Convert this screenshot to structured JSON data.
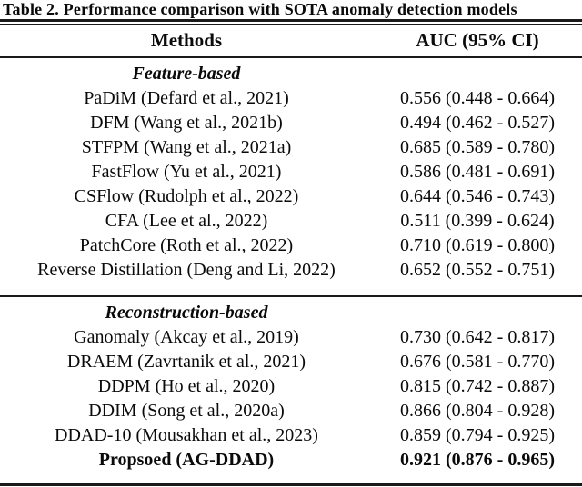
{
  "table": {
    "caption": "Table 2. Performance comparison with SOTA anomaly detection models",
    "columns": [
      "Methods",
      "AUC (95% CI)"
    ],
    "text_color": "#0a0a0a",
    "rule_color": "#1a1a1a",
    "background_color": "#ffffff",
    "sections": [
      {
        "title": "Feature-based",
        "rows": [
          {
            "method": "PaDiM (Defard et al., 2021)",
            "auc": "0.556 (0.448 - 0.664)",
            "bold": false
          },
          {
            "method": "DFM (Wang et al., 2021b)",
            "auc": "0.494 (0.462 - 0.527)",
            "bold": false
          },
          {
            "method": "STFPM (Wang et al., 2021a)",
            "auc": "0.685 (0.589 - 0.780)",
            "bold": false
          },
          {
            "method": "FastFlow (Yu et al., 2021)",
            "auc": "0.586 (0.481 - 0.691)",
            "bold": false
          },
          {
            "method": "CSFlow (Rudolph et al., 2022)",
            "auc": "0.644 (0.546 - 0.743)",
            "bold": false
          },
          {
            "method": "CFA (Lee et al., 2022)",
            "auc": "0.511 (0.399 - 0.624)",
            "bold": false
          },
          {
            "method": "PatchCore (Roth et al., 2022)",
            "auc": "0.710 (0.619 - 0.800)",
            "bold": false
          },
          {
            "method": "Reverse Distillation (Deng and Li, 2022)",
            "auc": "0.652 (0.552 - 0.751)",
            "bold": false
          }
        ]
      },
      {
        "title": "Reconstruction-based",
        "rows": [
          {
            "method": "Ganomaly (Akcay et al., 2019)",
            "auc": "0.730 (0.642 - 0.817)",
            "bold": false
          },
          {
            "method": "DRAEM (Zavrtanik et al., 2021)",
            "auc": "0.676 (0.581 - 0.770)",
            "bold": false
          },
          {
            "method": "DDPM (Ho et al., 2020)",
            "auc": "0.815 (0.742 - 0.887)",
            "bold": false
          },
          {
            "method": "DDIM (Song et al., 2020a)",
            "auc": "0.866 (0.804 - 0.928)",
            "bold": false
          },
          {
            "method": "DDAD-10 (Mousakhan et al., 2023)",
            "auc": "0.859 (0.794 - 0.925)",
            "bold": false
          },
          {
            "method": "Propsoed (AG-DDAD)",
            "auc": "0.921 (0.876 - 0.965)",
            "bold": true
          }
        ]
      }
    ]
  }
}
